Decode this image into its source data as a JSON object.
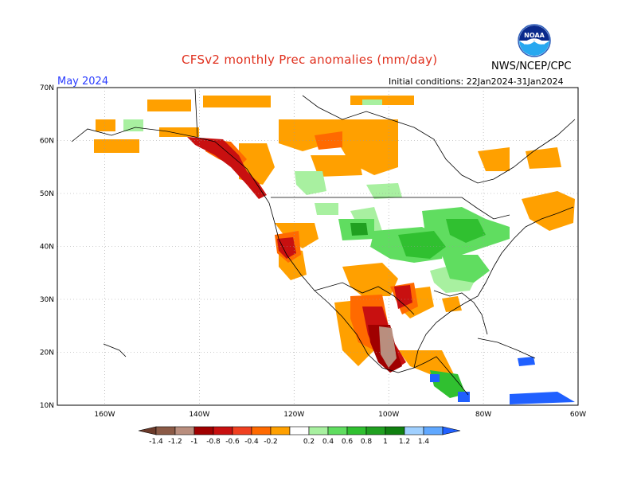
{
  "header": {
    "title": "CFSv2 monthly Prec anomalies (mm/day)",
    "agency": "NWS/NCEP/CPC",
    "month": "May 2024",
    "initial_conditions": "Initial conditions: 22Jan2024-31Jan2024"
  },
  "logo": {
    "text": "NOAA",
    "icon": "noaa-logo-icon"
  },
  "map": {
    "lat_labels": [
      "70N",
      "60N",
      "50N",
      "40N",
      "30N",
      "20N",
      "10N"
    ],
    "lon_labels": [
      "160W",
      "140W",
      "120W",
      "100W",
      "80W",
      "60W"
    ],
    "lat_range": [
      10,
      70
    ],
    "lon_range": [
      -170,
      -60
    ],
    "grid": true
  },
  "colorbar": {
    "labels": [
      "-1.4",
      "-1.2",
      "-1",
      "-0.8",
      "-0.6",
      "-0.4",
      "-0.2",
      "0.2",
      "0.4",
      "0.6",
      "0.8",
      "1",
      "1.2",
      "1.4"
    ],
    "colors": [
      "#6b3a2a",
      "#8b5a46",
      "#b98e7e",
      "#a00000",
      "#c81010",
      "#f04020",
      "#ff6a00",
      "#ffa000",
      "#ffffff",
      "#a8f0a0",
      "#60dd60",
      "#30c030",
      "#20a020",
      "#108010",
      "#a0d0ff",
      "#60a8ff",
      "#2060ff"
    ]
  },
  "anomaly_colors": {
    "dry_light": "#ffa000",
    "dry_mid": "#ff6a00",
    "dry_strong": "#f04020",
    "dry_very": "#c81010",
    "dry_extreme": "#a00000",
    "dry_brown": "#b98e7e",
    "wet_light": "#a8f0a0",
    "wet_mid": "#60dd60",
    "wet_strong": "#30c030",
    "wet_very": "#20a020",
    "wet_blue": "#2060ff"
  }
}
